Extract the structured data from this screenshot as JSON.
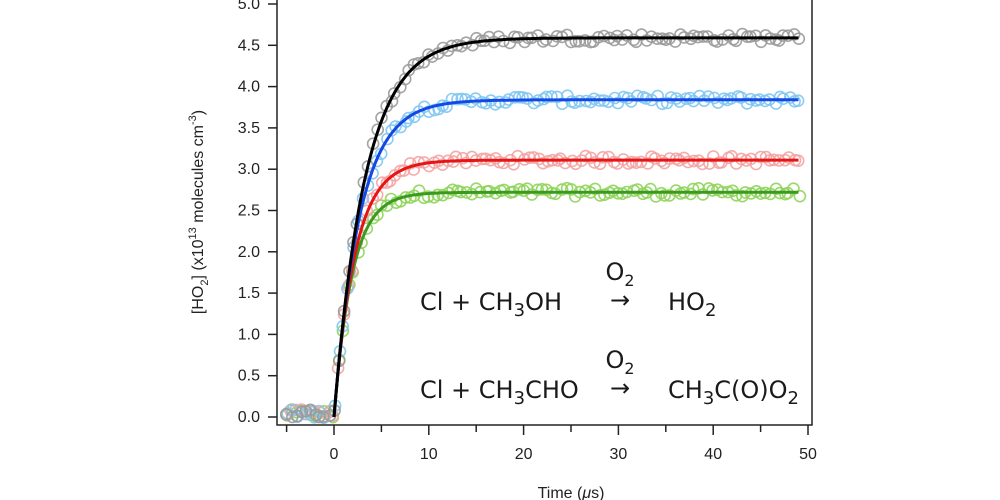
{
  "chart_data": {
    "type": "scatter",
    "title": "",
    "xlabel": "Time (μs)",
    "xlabel_parts": [
      "Time (",
      "μ",
      "s)"
    ],
    "ylabel_parts": [
      "[HO",
      "2",
      "] (x10",
      "13",
      " molecules cm",
      "-3",
      ")"
    ],
    "xlim": [
      -6,
      50.5
    ],
    "ylim": [
      -0.03,
      5.0
    ],
    "xticks_major": [
      0,
      10,
      20,
      30,
      40,
      50
    ],
    "xticks_minor": [
      -5,
      5,
      15,
      25,
      35,
      45
    ],
    "xtick_labels": [
      "0",
      "10",
      "20",
      "30",
      "40",
      "50"
    ],
    "yticks": [
      0,
      0.5,
      1,
      1.5,
      2,
      2.5,
      3,
      3.5,
      4,
      4.5,
      5
    ],
    "ytick_labels": [
      "0.0",
      "0.5",
      "1.0",
      "1.5",
      "2.0",
      "2.5",
      "3.0",
      "3.5",
      "4.0",
      "4.5",
      "5.0"
    ],
    "grid": false,
    "model": "y = A·(1 − exp(−t/τ)) for t ≥ 0, 0 before",
    "point_spacing_us": 0.5,
    "t_start": -5,
    "t_end": 49,
    "series": [
      {
        "name": "green",
        "marker_color": "#8fd45a",
        "line_color": "#3a9a20",
        "A": 2.72,
        "tau": 1.9,
        "noise": 0.05
      },
      {
        "name": "red",
        "marker_color": "#f4a3a3",
        "line_color": "#e51515",
        "A": 3.11,
        "tau": 2.2,
        "noise": 0.05
      },
      {
        "name": "blue",
        "marker_color": "#80c6f2",
        "line_color": "#1448e6",
        "A": 3.84,
        "tau": 2.7,
        "noise": 0.05
      },
      {
        "name": "gray",
        "marker_color": "#9a9a9a",
        "line_color": "#000000",
        "A": 4.59,
        "tau": 3.3,
        "noise": 0.05
      }
    ],
    "annotations": [
      {
        "reactants": "Cl + CH3OH",
        "catalyst": "O2",
        "arrow": "→",
        "product": "HO2"
      },
      {
        "reactants": "Cl + CH3CHO",
        "catalyst": "O2",
        "arrow": "→",
        "product": "CH3C(O)O2"
      }
    ]
  }
}
